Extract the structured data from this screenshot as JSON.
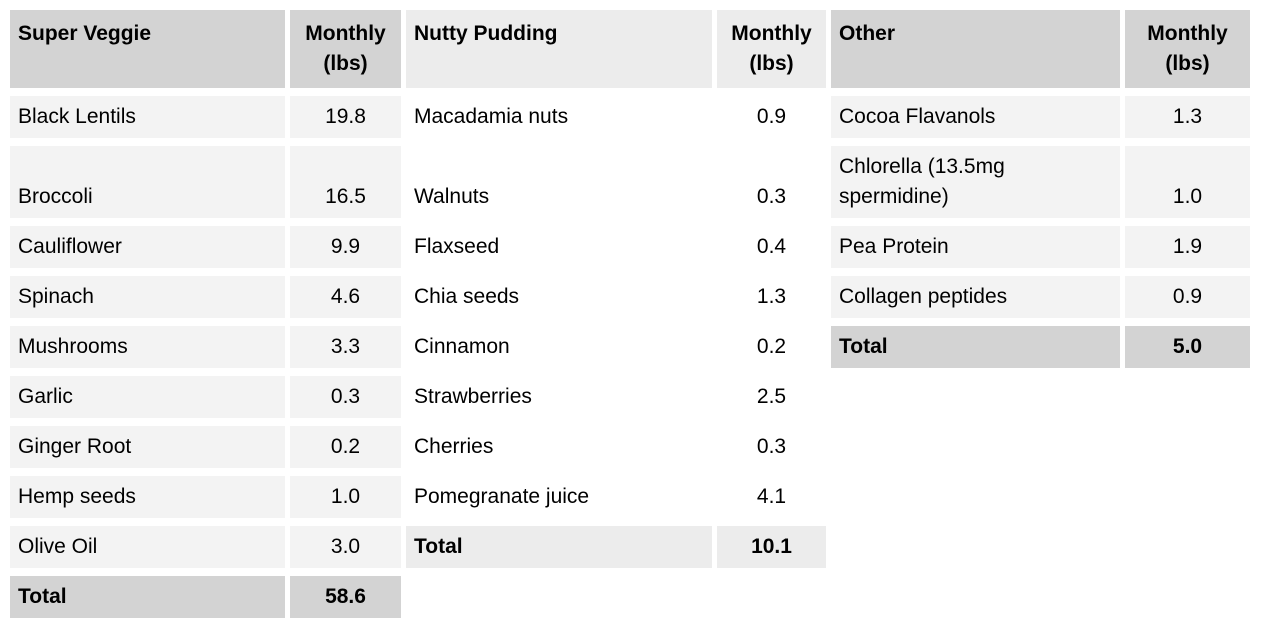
{
  "page": {
    "background": "#ffffff"
  },
  "tables": [
    {
      "key": "super-veggie",
      "title": "Super Veggie",
      "unit_header": "Monthly (lbs)",
      "colors": {
        "header": "#d3d3d3",
        "body": "#f3f3f3",
        "total": "#d3d3d3"
      },
      "items": [
        {
          "name": "Black Lentils",
          "qty": "19.8"
        },
        {
          "name": "Broccoli",
          "qty": "16.5"
        },
        {
          "name": "Cauliflower",
          "qty": "9.9"
        },
        {
          "name": "Spinach",
          "qty": "4.6"
        },
        {
          "name": "Mushrooms",
          "qty": "3.3"
        },
        {
          "name": "Garlic",
          "qty": "0.3"
        },
        {
          "name": "Ginger Root",
          "qty": "0.2"
        },
        {
          "name": "Hemp seeds",
          "qty": "1.0"
        },
        {
          "name": "Olive Oil",
          "qty": "3.0"
        }
      ],
      "total": {
        "label": "Total",
        "qty": "58.6"
      }
    },
    {
      "key": "nutty-pudding",
      "title": "Nutty Pudding",
      "unit_header": "Monthly (lbs)",
      "colors": {
        "header": "#ececec",
        "body": "#ffffff",
        "total": "#ececec"
      },
      "items": [
        {
          "name": "Macadamia nuts",
          "qty": "0.9"
        },
        {
          "name": "Walnuts",
          "qty": "0.3"
        },
        {
          "name": "Flaxseed",
          "qty": "0.4"
        },
        {
          "name": "Chia seeds",
          "qty": "1.3"
        },
        {
          "name": "Cinnamon",
          "qty": "0.2"
        },
        {
          "name": "Strawberries",
          "qty": "2.5"
        },
        {
          "name": "Cherries",
          "qty": "0.3"
        },
        {
          "name": "Pomegranate juice",
          "qty": "4.1"
        }
      ],
      "total": {
        "label": "Total",
        "qty": "10.1"
      }
    },
    {
      "key": "other",
      "title": "Other",
      "unit_header": "Monthly (lbs)",
      "colors": {
        "header": "#d3d3d3",
        "body": "#f3f3f3",
        "total": "#d3d3d3"
      },
      "items": [
        {
          "name": "Cocoa Flavanols",
          "qty": "1.3"
        },
        {
          "name": "Chlorella (13.5mg spermidine)",
          "qty": "1.0"
        },
        {
          "name": "Pea Protein",
          "qty": "1.9"
        },
        {
          "name": "Collagen peptides",
          "qty": "0.9"
        }
      ],
      "total": {
        "label": "Total",
        "qty": "5.0"
      }
    }
  ]
}
